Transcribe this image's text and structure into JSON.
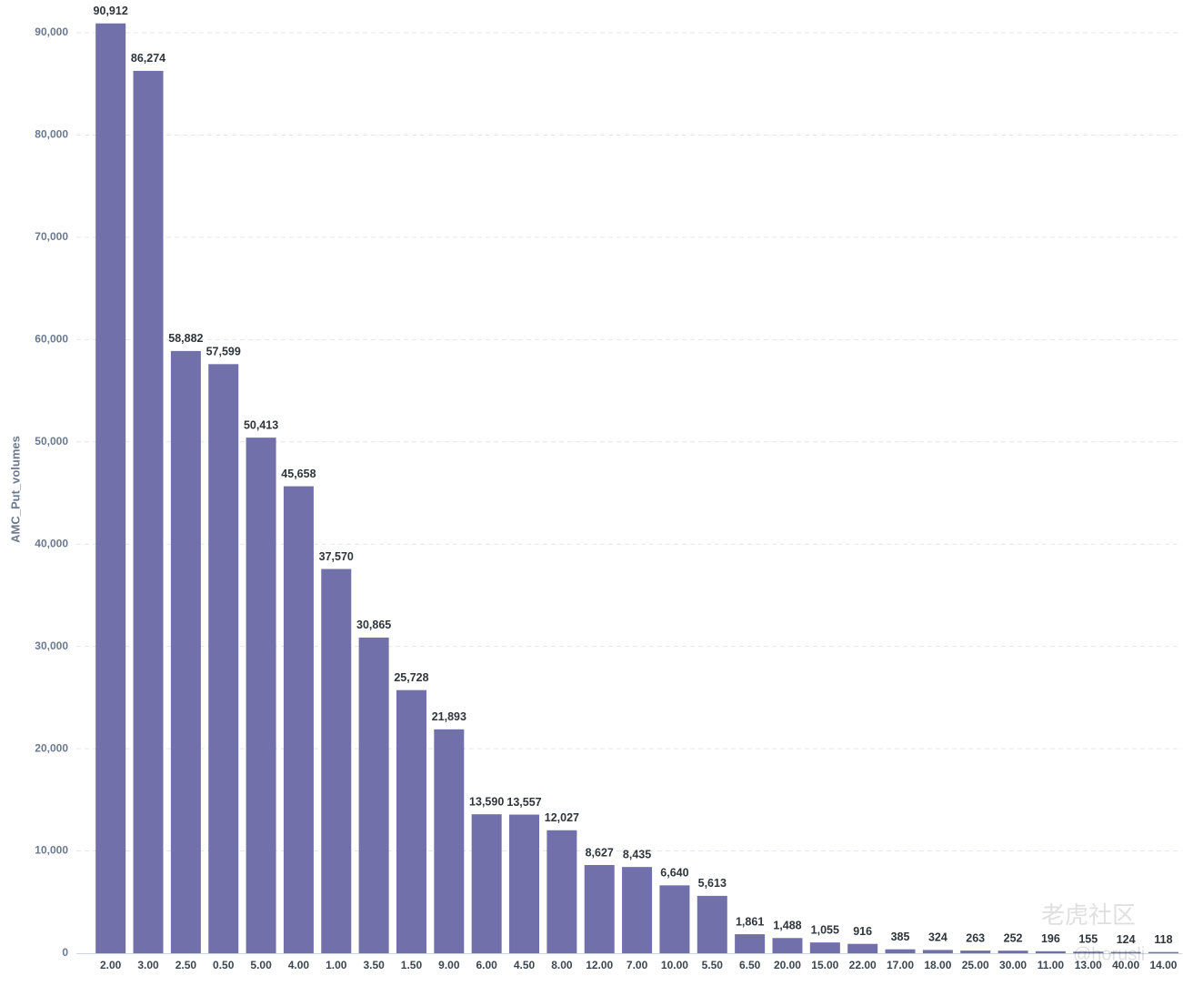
{
  "chart_data": {
    "type": "bar",
    "y_label": "AMC_Put_volumes",
    "categories": [
      "2.00",
      "3.00",
      "2.50",
      "0.50",
      "5.00",
      "4.00",
      "1.00",
      "3.50",
      "1.50",
      "9.00",
      "6.00",
      "4.50",
      "8.00",
      "12.00",
      "7.00",
      "10.00",
      "5.50",
      "6.50",
      "20.00",
      "15.00",
      "22.00",
      "17.00",
      "18.00",
      "25.00",
      "30.00",
      "11.00",
      "13.00",
      "40.00",
      "14.00"
    ],
    "values": [
      90912,
      86274,
      58882,
      57599,
      50413,
      45658,
      37570,
      30865,
      25728,
      21893,
      13590,
      13557,
      12027,
      8627,
      8435,
      6640,
      5613,
      1861,
      1488,
      1055,
      916,
      385,
      324,
      263,
      252,
      196,
      155,
      124,
      118
    ],
    "value_labels": [
      "90,912",
      "86,274",
      "58,882",
      "57,599",
      "50,413",
      "45,658",
      "37,570",
      "30,865",
      "25,728",
      "21,893",
      "13,590",
      "13,557",
      "12,027",
      "8,627",
      "8,435",
      "6,640",
      "5,613",
      "1,861",
      "1,488",
      "1,055",
      "916",
      "385",
      "324",
      "263",
      "252",
      "196",
      "155",
      "124",
      "118"
    ],
    "color": "#7170ab",
    "ylim": [
      0,
      92000
    ],
    "yticks": [
      0,
      {
        "value": 10000,
        "label": "10,000"
      },
      {
        "value": 20000,
        "label": "20,000"
      },
      {
        "value": 30000,
        "label": "30,000"
      },
      {
        "value": 40000,
        "label": "40,000"
      },
      {
        "value": 50000,
        "label": "50,000"
      },
      {
        "value": 60000,
        "label": "60,000"
      },
      {
        "value": 70000,
        "label": "70,000"
      },
      {
        "value": 80000,
        "label": "80,000"
      },
      {
        "value": 90000,
        "label": "90,000"
      }
    ],
    "grid": true,
    "watermark": [
      "老虎社区",
      "@horusli"
    ]
  }
}
